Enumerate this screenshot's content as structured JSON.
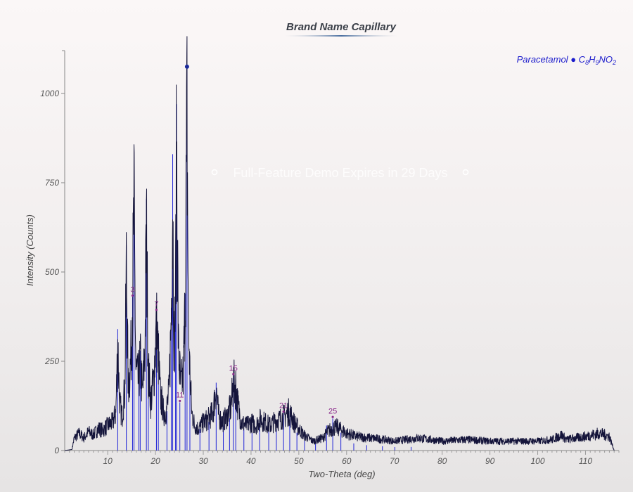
{
  "chart_data": {
    "type": "line",
    "title": "Brand Name Capillary",
    "xlabel": "Two-Theta (deg)",
    "ylabel": "Intensity (Counts)",
    "xlim": [
      1,
      117
    ],
    "ylim": [
      0,
      1120
    ],
    "x_ticks": [
      10,
      20,
      30,
      40,
      50,
      60,
      70,
      80,
      90,
      100,
      110
    ],
    "y_ticks": [
      0,
      250,
      500,
      750,
      1000
    ],
    "grid": false,
    "legend": {
      "placement": "top-right",
      "name": "Paracetamol",
      "formula_parts": [
        {
          "text": "C",
          "sub": false
        },
        {
          "text": "8",
          "sub": true
        },
        {
          "text": "H",
          "sub": false
        },
        {
          "text": "9",
          "sub": true
        },
        {
          "text": "NO",
          "sub": false
        },
        {
          "text": "2",
          "sub": true
        }
      ]
    },
    "series": [
      {
        "name": "Paracetamol",
        "color": "#14143a",
        "profile": [
          [
            1,
            0
          ],
          [
            2.5,
            3
          ],
          [
            3,
            40
          ],
          [
            4,
            55
          ],
          [
            5,
            40
          ],
          [
            6,
            60
          ],
          [
            7,
            50
          ],
          [
            8,
            70
          ],
          [
            9,
            65
          ],
          [
            10,
            80
          ],
          [
            11,
            90
          ],
          [
            11.7,
            120
          ],
          [
            12.1,
            345
          ],
          [
            12.5,
            150
          ],
          [
            13,
            110
          ],
          [
            13.6,
            200
          ],
          [
            13.9,
            580
          ],
          [
            14.3,
            200
          ],
          [
            14.8,
            280
          ],
          [
            15.2,
            480
          ],
          [
            15.5,
            775
          ],
          [
            15.9,
            260
          ],
          [
            16.4,
            220
          ],
          [
            16.8,
            290
          ],
          [
            17.3,
            180
          ],
          [
            17.8,
            330
          ],
          [
            18.1,
            710
          ],
          [
            18.5,
            260
          ],
          [
            19,
            160
          ],
          [
            19.6,
            220
          ],
          [
            20.2,
            400
          ],
          [
            20.6,
            300
          ],
          [
            21,
            180
          ],
          [
            21.7,
            120
          ],
          [
            22.3,
            130
          ],
          [
            22.8,
            180
          ],
          [
            23.3,
            420
          ],
          [
            23.6,
            835
          ],
          [
            23.9,
            320
          ],
          [
            24.2,
            500
          ],
          [
            24.4,
            975
          ],
          [
            24.8,
            320
          ],
          [
            25.3,
            200
          ],
          [
            25.8,
            240
          ],
          [
            26.2,
            460
          ],
          [
            26.6,
            1075
          ],
          [
            26.9,
            400
          ],
          [
            27.2,
            250
          ],
          [
            27.6,
            120
          ],
          [
            28.2,
            80
          ],
          [
            29,
            70
          ],
          [
            30,
            90
          ],
          [
            31,
            100
          ],
          [
            32,
            120
          ],
          [
            32.7,
            200
          ],
          [
            33.2,
            110
          ],
          [
            34,
            90
          ],
          [
            35,
            110
          ],
          [
            35.8,
            140
          ],
          [
            36.3,
            215
          ],
          [
            36.8,
            205
          ],
          [
            37.3,
            140
          ],
          [
            38,
            90
          ],
          [
            39,
            80
          ],
          [
            40,
            90
          ],
          [
            41,
            80
          ],
          [
            42,
            100
          ],
          [
            43,
            90
          ],
          [
            44,
            80
          ],
          [
            45,
            95
          ],
          [
            46,
            100
          ],
          [
            47,
            110
          ],
          [
            48,
            125
          ],
          [
            49,
            90
          ],
          [
            50,
            70
          ],
          [
            51,
            50
          ],
          [
            52,
            40
          ],
          [
            53,
            30
          ],
          [
            54,
            35
          ],
          [
            55,
            40
          ],
          [
            56,
            60
          ],
          [
            57,
            70
          ],
          [
            58,
            75
          ],
          [
            59,
            65
          ],
          [
            60,
            55
          ],
          [
            62,
            45
          ],
          [
            65,
            40
          ],
          [
            68,
            35
          ],
          [
            70,
            30
          ],
          [
            75,
            40
          ],
          [
            80,
            30
          ],
          [
            85,
            35
          ],
          [
            90,
            30
          ],
          [
            95,
            30
          ],
          [
            100,
            30
          ],
          [
            103,
            35
          ],
          [
            105,
            50
          ],
          [
            106,
            35
          ],
          [
            108,
            40
          ],
          [
            110,
            45
          ],
          [
            113,
            55
          ],
          [
            115,
            45
          ],
          [
            116,
            0
          ]
        ]
      }
    ],
    "reference_lines_color": "#1e22d6",
    "reference_lines": [
      [
        12.1,
        340
      ],
      [
        13.9,
        575
      ],
      [
        15.2,
        430
      ],
      [
        15.5,
        770
      ],
      [
        16.5,
        200
      ],
      [
        16.8,
        280
      ],
      [
        18.1,
        705
      ],
      [
        18.5,
        250
      ],
      [
        20.2,
        390
      ],
      [
        20.6,
        280
      ],
      [
        22.4,
        110
      ],
      [
        23.3,
        400
      ],
      [
        23.6,
        830
      ],
      [
        24.2,
        480
      ],
      [
        24.4,
        970
      ],
      [
        25.1,
        135
      ],
      [
        26.2,
        440
      ],
      [
        26.6,
        1070
      ],
      [
        27.2,
        240
      ],
      [
        29.3,
        60
      ],
      [
        31.2,
        80
      ],
      [
        32.7,
        190
      ],
      [
        34.2,
        70
      ],
      [
        35.5,
        90
      ],
      [
        36.3,
        210
      ],
      [
        36.8,
        200
      ],
      [
        38.5,
        60
      ],
      [
        40.2,
        50
      ],
      [
        41.8,
        70
      ],
      [
        43.7,
        60
      ],
      [
        45.3,
        60
      ],
      [
        46.8,
        105
      ],
      [
        48.1,
        110
      ],
      [
        49.6,
        50
      ],
      [
        51.2,
        30
      ],
      [
        53.5,
        20
      ],
      [
        55.8,
        70
      ],
      [
        57.1,
        90
      ],
      [
        58.8,
        50
      ],
      [
        61.5,
        20
      ],
      [
        64.2,
        15
      ],
      [
        67.5,
        12
      ],
      [
        70.1,
        10
      ],
      [
        73.5,
        10
      ]
    ],
    "peak_labels": [
      {
        "label": "3",
        "x": 15.2,
        "y": 430
      },
      {
        "label": "7",
        "x": 20.2,
        "y": 390
      },
      {
        "label": "11",
        "x": 25.1,
        "y": 135
      },
      {
        "label": "15",
        "x": 36.3,
        "y": 210
      },
      {
        "label": "21",
        "x": 46.8,
        "y": 105
      },
      {
        "label": "25",
        "x": 57.1,
        "y": 90
      }
    ],
    "top_peak_marker": {
      "x": 26.6,
      "y": 1075
    }
  },
  "watermark": "Full-Feature Demo Expires in 29 Days"
}
